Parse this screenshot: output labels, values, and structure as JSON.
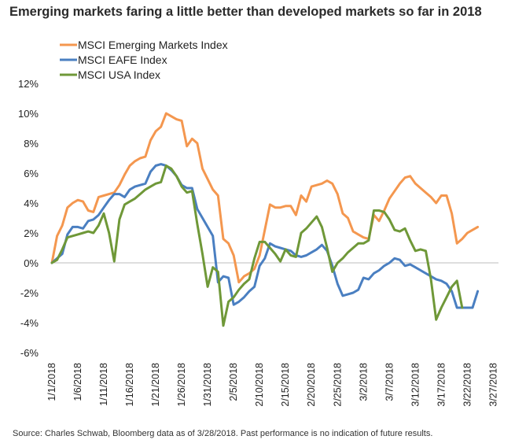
{
  "title": "Emerging markets faring a little better than developed markets so far in 2018",
  "source_note": "Source: Charles Schwab, Bloomberg data as of 3/28/2018.  Past performance is no indication of future results.",
  "chart_data": {
    "type": "line",
    "title": "Emerging markets faring a little better than developed markets so far in 2018",
    "xlabel": "",
    "ylabel": "",
    "x_range": [
      0,
      86
    ],
    "ylim": [
      -6,
      12
    ],
    "y_ticks": [
      -6,
      -4,
      -2,
      0,
      2,
      4,
      6,
      8,
      10,
      12
    ],
    "y_tick_labels": [
      "-6%",
      "-4%",
      "-2%",
      "0%",
      "2%",
      "4%",
      "6%",
      "8%",
      "10%",
      "12%"
    ],
    "x_ticks": [
      {
        "label": "1/1/2018",
        "day": 0
      },
      {
        "label": "1/6/2018",
        "day": 5
      },
      {
        "label": "1/11/2018",
        "day": 10
      },
      {
        "label": "1/16/2018",
        "day": 15
      },
      {
        "label": "1/21/2018",
        "day": 20
      },
      {
        "label": "1/26/2018",
        "day": 25
      },
      {
        "label": "1/31/2018",
        "day": 30
      },
      {
        "label": "2/5/2018",
        "day": 35
      },
      {
        "label": "2/10/2018",
        "day": 40
      },
      {
        "label": "2/15/2018",
        "day": 45
      },
      {
        "label": "2/20/2018",
        "day": 50
      },
      {
        "label": "2/25/2018",
        "day": 55
      },
      {
        "label": "3/2/2018",
        "day": 60
      },
      {
        "label": "3/7/2018",
        "day": 65
      },
      {
        "label": "3/12/2018",
        "day": 70
      },
      {
        "label": "3/17/2018",
        "day": 75
      },
      {
        "label": "3/22/2018",
        "day": 80
      },
      {
        "label": "3/27/2018",
        "day": 85
      }
    ],
    "legend_position": "top-left",
    "series": [
      {
        "name": "MSCI Emerging Markets Index",
        "color": "#f4974f",
        "points": [
          [
            0,
            0.0
          ],
          [
            1,
            1.8
          ],
          [
            2,
            2.5
          ],
          [
            3,
            3.7
          ],
          [
            4,
            4.0
          ],
          [
            5,
            4.2
          ],
          [
            6,
            4.1
          ],
          [
            7,
            3.5
          ],
          [
            8,
            3.4
          ],
          [
            9,
            4.4
          ],
          [
            10,
            4.5
          ],
          [
            11,
            4.6
          ],
          [
            12,
            4.7
          ],
          [
            13,
            5.2
          ],
          [
            14,
            5.9
          ],
          [
            15,
            6.5
          ],
          [
            16,
            6.8
          ],
          [
            17,
            7.0
          ],
          [
            18,
            7.1
          ],
          [
            19,
            8.2
          ],
          [
            20,
            8.8
          ],
          [
            21,
            9.1
          ],
          [
            22,
            10.0
          ],
          [
            23,
            9.8
          ],
          [
            24,
            9.6
          ],
          [
            25,
            9.5
          ],
          [
            26,
            7.8
          ],
          [
            27,
            8.3
          ],
          [
            28,
            8.0
          ],
          [
            29,
            6.3
          ],
          [
            30,
            5.6
          ],
          [
            31,
            4.9
          ],
          [
            32,
            4.5
          ],
          [
            33,
            1.6
          ],
          [
            34,
            1.3
          ],
          [
            35,
            0.5
          ],
          [
            36,
            -1.3
          ],
          [
            37,
            -0.9
          ],
          [
            38,
            -0.7
          ],
          [
            39,
            -0.4
          ],
          [
            40,
            0.5
          ],
          [
            41,
            2.2
          ],
          [
            42,
            3.9
          ],
          [
            43,
            3.7
          ],
          [
            44,
            3.7
          ],
          [
            45,
            3.8
          ],
          [
            46,
            3.8
          ],
          [
            47,
            3.2
          ],
          [
            48,
            4.5
          ],
          [
            49,
            4.1
          ],
          [
            50,
            5.1
          ],
          [
            51,
            5.2
          ],
          [
            52,
            5.3
          ],
          [
            53,
            5.5
          ],
          [
            54,
            5.3
          ],
          [
            55,
            4.6
          ],
          [
            56,
            3.3
          ],
          [
            57,
            3.0
          ],
          [
            58,
            2.1
          ],
          [
            59,
            1.9
          ],
          [
            60,
            1.7
          ],
          [
            61,
            1.6
          ],
          [
            62,
            3.2
          ],
          [
            63,
            2.8
          ],
          [
            64,
            3.5
          ],
          [
            65,
            4.3
          ],
          [
            66,
            4.8
          ],
          [
            67,
            5.3
          ],
          [
            68,
            5.7
          ],
          [
            69,
            5.8
          ],
          [
            70,
            5.3
          ],
          [
            71,
            5.0
          ],
          [
            72,
            4.7
          ],
          [
            73,
            4.4
          ],
          [
            74,
            4.0
          ],
          [
            75,
            4.5
          ],
          [
            76,
            4.5
          ],
          [
            77,
            3.3
          ],
          [
            78,
            1.3
          ],
          [
            79,
            1.6
          ],
          [
            80,
            2.0
          ],
          [
            81,
            2.2
          ],
          [
            82,
            2.4
          ]
        ]
      },
      {
        "name": "MSCI EAFE Index",
        "color": "#4a7fc1",
        "points": [
          [
            0,
            0.0
          ],
          [
            1,
            0.3
          ],
          [
            2,
            0.6
          ],
          [
            3,
            1.9
          ],
          [
            4,
            2.4
          ],
          [
            5,
            2.4
          ],
          [
            6,
            2.3
          ],
          [
            7,
            2.8
          ],
          [
            8,
            2.9
          ],
          [
            9,
            3.2
          ],
          [
            10,
            3.7
          ],
          [
            11,
            4.2
          ],
          [
            12,
            4.6
          ],
          [
            13,
            4.6
          ],
          [
            14,
            4.4
          ],
          [
            15,
            4.9
          ],
          [
            16,
            5.1
          ],
          [
            17,
            5.2
          ],
          [
            18,
            5.3
          ],
          [
            19,
            6.1
          ],
          [
            20,
            6.5
          ],
          [
            21,
            6.6
          ],
          [
            22,
            6.5
          ],
          [
            23,
            6.2
          ],
          [
            24,
            5.8
          ],
          [
            25,
            5.2
          ],
          [
            26,
            5.0
          ],
          [
            27,
            5.0
          ],
          [
            28,
            3.6
          ],
          [
            29,
            3.0
          ],
          [
            30,
            2.4
          ],
          [
            31,
            1.8
          ],
          [
            32,
            -1.3
          ],
          [
            33,
            -0.9
          ],
          [
            34,
            -1.0
          ],
          [
            35,
            -2.8
          ],
          [
            36,
            -2.6
          ],
          [
            37,
            -2.3
          ],
          [
            38,
            -1.9
          ],
          [
            39,
            -1.6
          ],
          [
            40,
            -0.2
          ],
          [
            41,
            0.3
          ],
          [
            42,
            1.3
          ],
          [
            43,
            1.1
          ],
          [
            44,
            1.0
          ],
          [
            45,
            0.9
          ],
          [
            46,
            0.8
          ],
          [
            47,
            0.5
          ],
          [
            48,
            0.4
          ],
          [
            49,
            0.5
          ],
          [
            50,
            0.7
          ],
          [
            51,
            0.9
          ],
          [
            52,
            1.2
          ],
          [
            53,
            0.8
          ],
          [
            54,
            -0.2
          ],
          [
            55,
            -1.4
          ],
          [
            56,
            -2.2
          ],
          [
            57,
            -2.1
          ],
          [
            58,
            -2.0
          ],
          [
            59,
            -1.8
          ],
          [
            60,
            -1.0
          ],
          [
            61,
            -1.1
          ],
          [
            62,
            -0.7
          ],
          [
            63,
            -0.5
          ],
          [
            64,
            -0.2
          ],
          [
            65,
            0.0
          ],
          [
            66,
            0.3
          ],
          [
            67,
            0.2
          ],
          [
            68,
            -0.2
          ],
          [
            69,
            -0.1
          ],
          [
            70,
            -0.3
          ],
          [
            71,
            -0.5
          ],
          [
            72,
            -0.7
          ],
          [
            73,
            -0.9
          ],
          [
            74,
            -1.1
          ],
          [
            75,
            -1.2
          ],
          [
            76,
            -1.4
          ],
          [
            77,
            -1.9
          ],
          [
            78,
            -3.0
          ],
          [
            79,
            -3.0
          ],
          [
            80,
            -3.0
          ],
          [
            81,
            -3.0
          ],
          [
            82,
            -1.9
          ]
        ]
      },
      {
        "name": "MSCI USA Index",
        "color": "#6f9838",
        "points": [
          [
            0,
            0.0
          ],
          [
            1,
            0.2
          ],
          [
            2,
            0.9
          ],
          [
            3,
            1.7
          ],
          [
            4,
            1.8
          ],
          [
            5,
            1.9
          ],
          [
            6,
            2.0
          ],
          [
            7,
            2.1
          ],
          [
            8,
            2.0
          ],
          [
            9,
            2.5
          ],
          [
            10,
            3.3
          ],
          [
            11,
            2.0
          ],
          [
            12,
            0.1
          ],
          [
            13,
            2.9
          ],
          [
            14,
            3.9
          ],
          [
            15,
            4.1
          ],
          [
            16,
            4.3
          ],
          [
            17,
            4.6
          ],
          [
            18,
            4.9
          ],
          [
            19,
            5.1
          ],
          [
            20,
            5.3
          ],
          [
            21,
            5.4
          ],
          [
            22,
            6.5
          ],
          [
            23,
            6.3
          ],
          [
            24,
            5.8
          ],
          [
            25,
            5.1
          ],
          [
            26,
            4.7
          ],
          [
            27,
            4.8
          ],
          [
            28,
            2.6
          ],
          [
            29,
            0.6
          ],
          [
            30,
            -1.6
          ],
          [
            31,
            -0.3
          ],
          [
            32,
            -0.6
          ],
          [
            33,
            -4.2
          ],
          [
            34,
            -2.6
          ],
          [
            35,
            -2.3
          ],
          [
            36,
            -1.8
          ],
          [
            37,
            -1.4
          ],
          [
            38,
            -1.1
          ],
          [
            39,
            0.3
          ],
          [
            40,
            1.4
          ],
          [
            41,
            1.4
          ],
          [
            42,
            1.0
          ],
          [
            43,
            0.6
          ],
          [
            44,
            0.1
          ],
          [
            45,
            0.9
          ],
          [
            46,
            0.5
          ],
          [
            47,
            0.4
          ],
          [
            48,
            2.0
          ],
          [
            49,
            2.3
          ],
          [
            50,
            2.7
          ],
          [
            51,
            3.1
          ],
          [
            52,
            2.4
          ],
          [
            53,
            1.0
          ],
          [
            54,
            -0.6
          ],
          [
            55,
            0.0
          ],
          [
            56,
            0.3
          ],
          [
            57,
            0.7
          ],
          [
            58,
            1.0
          ],
          [
            59,
            1.3
          ],
          [
            60,
            1.3
          ],
          [
            61,
            1.5
          ],
          [
            62,
            3.5
          ],
          [
            63,
            3.5
          ],
          [
            64,
            3.4
          ],
          [
            65,
            2.9
          ],
          [
            66,
            2.2
          ],
          [
            67,
            2.1
          ],
          [
            68,
            2.3
          ],
          [
            69,
            1.5
          ],
          [
            70,
            0.8
          ],
          [
            71,
            0.9
          ],
          [
            72,
            0.8
          ],
          [
            73,
            -1.1
          ],
          [
            74,
            -3.8
          ],
          [
            75,
            -3.0
          ],
          [
            76,
            -2.3
          ],
          [
            77,
            -1.6
          ],
          [
            78,
            -1.2
          ],
          [
            79,
            -3.0
          ]
        ]
      }
    ]
  }
}
